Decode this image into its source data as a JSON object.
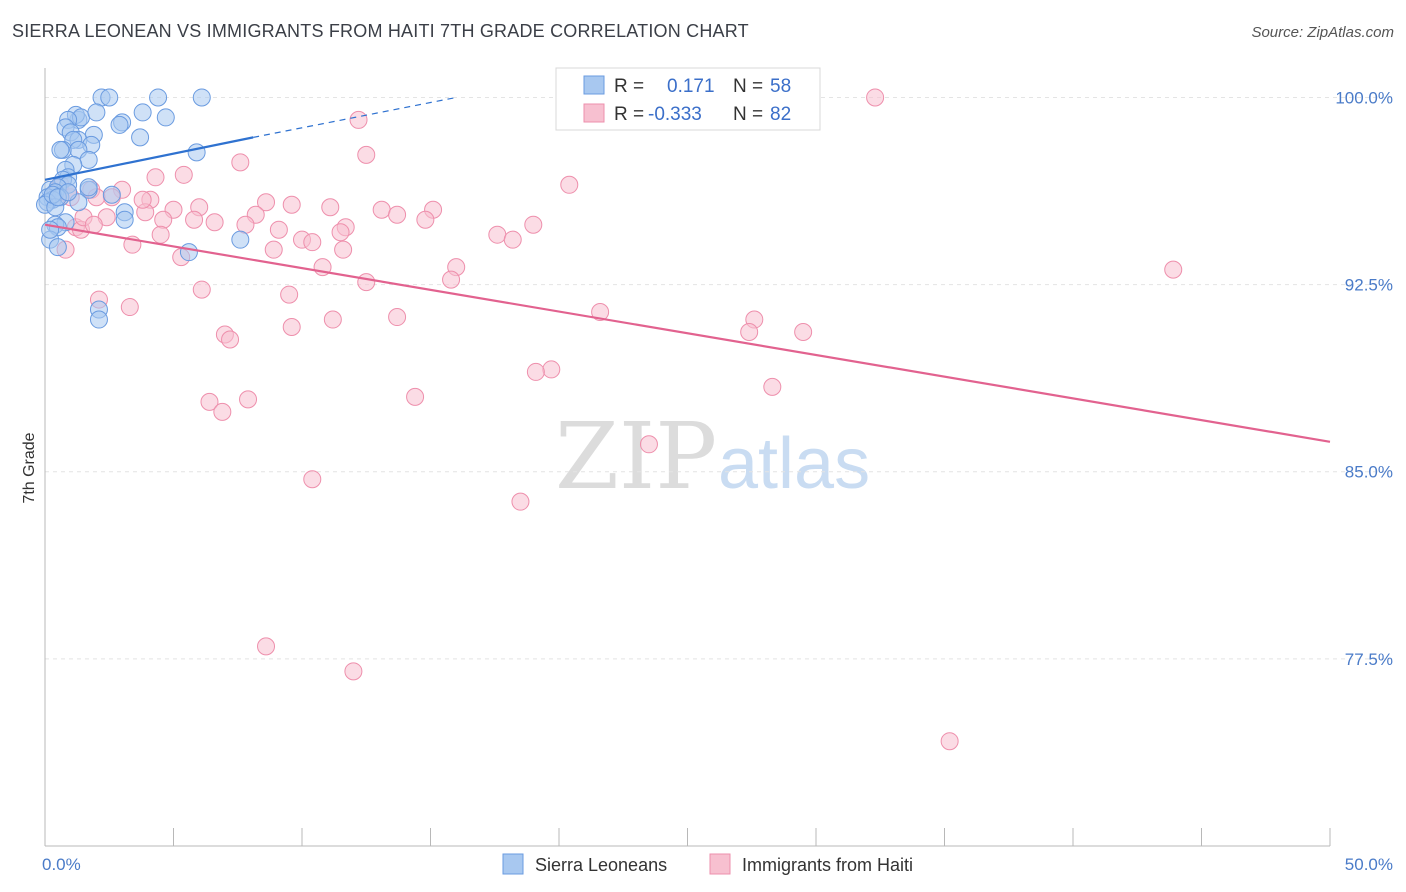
{
  "header": {
    "title": "SIERRA LEONEAN VS IMMIGRANTS FROM HAITI 7TH GRADE CORRELATION CHART",
    "source": "Source: ZipAtlas.com"
  },
  "watermark": {
    "zip": "ZIP",
    "atlas": "atlas"
  },
  "legend": {
    "r_label": "R =",
    "n_label": "N =",
    "series": [
      {
        "r": "0.171",
        "n": "58"
      },
      {
        "r": "-0.333",
        "n": "82"
      }
    ]
  },
  "bottom_legend": [
    "Sierra Leoneans",
    "Immigrants from Haiti"
  ],
  "colors": {
    "blue_fill": "#a8c8f0",
    "blue_stroke": "#6a9be0",
    "blue_line": "#2f72d0",
    "pink_fill": "#f7c0d0",
    "pink_stroke": "#ee8fac",
    "pink_line": "#e2628f",
    "tick_text": "#4a7bc8",
    "grid": "#e4e4e4"
  },
  "chart_data": {
    "type": "scatter",
    "title": "SIERRA LEONEAN VS IMMIGRANTS FROM HAITI 7TH GRADE CORRELATION CHART",
    "xlabel": "",
    "ylabel": "7th Grade",
    "xlim": [
      0,
      50
    ],
    "ylim": [
      70,
      100.7
    ],
    "x_tick_labels": [
      {
        "value": 0,
        "label": "0.0%"
      },
      {
        "value": 50,
        "label": "50.0%"
      }
    ],
    "y_tick_labels": [
      {
        "value": 100,
        "label": "100.0%"
      },
      {
        "value": 92.5,
        "label": "92.5%"
      },
      {
        "value": 85,
        "label": "85.0%"
      },
      {
        "value": 77.5,
        "label": "77.5%"
      }
    ],
    "series": [
      {
        "name": "Sierra Leoneans",
        "color": "blue",
        "r": 0.171,
        "n": 58,
        "trend": {
          "x0": 0,
          "y0": 96.7,
          "x1": 8.1,
          "y1": 98.4,
          "dash_to_x": 16,
          "dash_to_y": 100
        },
        "points": [
          [
            2.2,
            100
          ],
          [
            2.5,
            100
          ],
          [
            4.4,
            100
          ],
          [
            6.1,
            100
          ],
          [
            1.3,
            99.1
          ],
          [
            1.2,
            99.3
          ],
          [
            1.4,
            99.2
          ],
          [
            0.9,
            99.1
          ],
          [
            2.0,
            99.4
          ],
          [
            3.8,
            99.4
          ],
          [
            4.7,
            99.2
          ],
          [
            3.0,
            99.0
          ],
          [
            2.9,
            98.9
          ],
          [
            0.8,
            98.8
          ],
          [
            1.0,
            98.6
          ],
          [
            1.9,
            98.5
          ],
          [
            3.7,
            98.4
          ],
          [
            1.3,
            98.3
          ],
          [
            1.1,
            98.3
          ],
          [
            1.8,
            98.1
          ],
          [
            0.7,
            97.9
          ],
          [
            0.6,
            97.9
          ],
          [
            1.3,
            97.9
          ],
          [
            5.9,
            97.8
          ],
          [
            1.7,
            97.5
          ],
          [
            1.1,
            97.3
          ],
          [
            0.8,
            97.1
          ],
          [
            0.9,
            96.8
          ],
          [
            0.7,
            96.7
          ],
          [
            0.9,
            96.5
          ],
          [
            1.7,
            96.3
          ],
          [
            0.2,
            96.3
          ],
          [
            0.5,
            96.4
          ],
          [
            0.4,
            96.2
          ],
          [
            0.1,
            96.0
          ],
          [
            0.6,
            96.0
          ],
          [
            0.3,
            95.9
          ],
          [
            0.1,
            95.8
          ],
          [
            1.3,
            95.8
          ],
          [
            0.0,
            95.7
          ],
          [
            0.4,
            95.6
          ],
          [
            3.1,
            95.4
          ],
          [
            3.1,
            95.1
          ],
          [
            0.8,
            95.0
          ],
          [
            0.4,
            94.9
          ],
          [
            0.5,
            94.8
          ],
          [
            7.6,
            94.3
          ],
          [
            0.2,
            94.3
          ],
          [
            0.5,
            94.0
          ],
          [
            5.6,
            93.8
          ],
          [
            2.1,
            91.5
          ],
          [
            2.1,
            91.1
          ],
          [
            1.7,
            96.4
          ],
          [
            0.3,
            96.1
          ],
          [
            0.5,
            96.0
          ],
          [
            0.9,
            96.2
          ],
          [
            2.6,
            96.1
          ],
          [
            0.2,
            94.7
          ]
        ]
      },
      {
        "name": "Immigrants from Haiti",
        "color": "pink",
        "r": -0.333,
        "n": 82,
        "trend": {
          "x0": 0,
          "y0": 94.9,
          "x1": 50,
          "y1": 86.2
        },
        "points": [
          [
            32.3,
            100
          ],
          [
            12.2,
            99.1
          ],
          [
            12.5,
            97.7
          ],
          [
            7.6,
            97.4
          ],
          [
            4.3,
            96.8
          ],
          [
            5.4,
            96.9
          ],
          [
            20.4,
            96.5
          ],
          [
            1.8,
            96.3
          ],
          [
            3.0,
            96.3
          ],
          [
            0.4,
            96.1
          ],
          [
            2.6,
            96.0
          ],
          [
            1.0,
            96.0
          ],
          [
            4.1,
            95.9
          ],
          [
            8.6,
            95.8
          ],
          [
            9.6,
            95.7
          ],
          [
            6.0,
            95.6
          ],
          [
            11.1,
            95.6
          ],
          [
            13.1,
            95.5
          ],
          [
            15.1,
            95.5
          ],
          [
            5.0,
            95.5
          ],
          [
            3.9,
            95.4
          ],
          [
            8.2,
            95.3
          ],
          [
            13.7,
            95.3
          ],
          [
            2.4,
            95.2
          ],
          [
            5.8,
            95.1
          ],
          [
            4.6,
            95.1
          ],
          [
            6.6,
            95.0
          ],
          [
            14.8,
            95.1
          ],
          [
            7.8,
            94.9
          ],
          [
            19.0,
            94.9
          ],
          [
            1.2,
            94.8
          ],
          [
            1.4,
            94.7
          ],
          [
            9.1,
            94.7
          ],
          [
            11.7,
            94.8
          ],
          [
            11.5,
            94.6
          ],
          [
            17.6,
            94.5
          ],
          [
            4.5,
            94.5
          ],
          [
            10.0,
            94.3
          ],
          [
            18.2,
            94.3
          ],
          [
            10.4,
            94.2
          ],
          [
            3.4,
            94.1
          ],
          [
            8.9,
            93.9
          ],
          [
            11.6,
            93.9
          ],
          [
            0.8,
            93.9
          ],
          [
            5.3,
            93.6
          ],
          [
            10.8,
            93.2
          ],
          [
            16.0,
            93.2
          ],
          [
            43.9,
            93.1
          ],
          [
            15.8,
            92.7
          ],
          [
            12.5,
            92.6
          ],
          [
            6.1,
            92.3
          ],
          [
            9.5,
            92.1
          ],
          [
            2.1,
            91.9
          ],
          [
            3.3,
            91.6
          ],
          [
            21.6,
            91.4
          ],
          [
            13.7,
            91.2
          ],
          [
            11.2,
            91.1
          ],
          [
            27.6,
            91.1
          ],
          [
            9.6,
            90.8
          ],
          [
            27.4,
            90.6
          ],
          [
            29.5,
            90.6
          ],
          [
            7.0,
            90.5
          ],
          [
            7.2,
            90.3
          ],
          [
            19.7,
            89.1
          ],
          [
            19.1,
            89.0
          ],
          [
            28.3,
            88.4
          ],
          [
            14.4,
            88.0
          ],
          [
            7.9,
            87.9
          ],
          [
            6.4,
            87.8
          ],
          [
            6.9,
            87.4
          ],
          [
            23.5,
            86.1
          ],
          [
            10.4,
            84.7
          ],
          [
            18.5,
            83.8
          ],
          [
            8.6,
            78.0
          ],
          [
            12.0,
            77.0
          ],
          [
            35.2,
            74.2
          ],
          [
            2.0,
            96.0
          ],
          [
            1.5,
            95.2
          ],
          [
            3.8,
            95.9
          ],
          [
            0.6,
            96.5
          ],
          [
            0.9,
            96.2
          ],
          [
            1.9,
            94.9
          ]
        ]
      }
    ]
  }
}
